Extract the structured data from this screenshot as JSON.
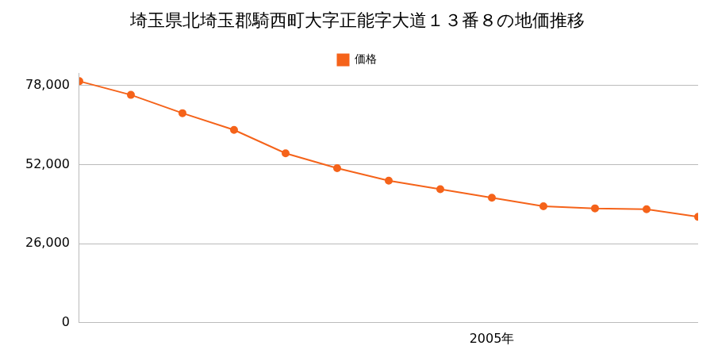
{
  "chart_data": {
    "type": "line",
    "title": "埼玉県北埼玉郡騎西町大字正能字大道１３番８の地価推移",
    "categories": [
      null,
      null,
      null,
      null,
      null,
      null,
      null,
      null,
      "2005年",
      null,
      null,
      null,
      null
    ],
    "series": [
      {
        "name": "価格",
        "color": "#f5631a",
        "marker": "circle",
        "values": [
          79400,
          74900,
          68900,
          63400,
          55700,
          50800,
          46700,
          43900,
          41100,
          38300,
          37600,
          37300,
          34800
        ]
      }
    ],
    "ylim": [
      0,
      82000
    ],
    "yticks": [
      0,
      {
        "value": 26000,
        "label": "26,000"
      },
      {
        "value": 52000,
        "label": "52,000"
      },
      {
        "value": 78000,
        "label": "78,000"
      }
    ],
    "grid": true,
    "legend": "top"
  }
}
